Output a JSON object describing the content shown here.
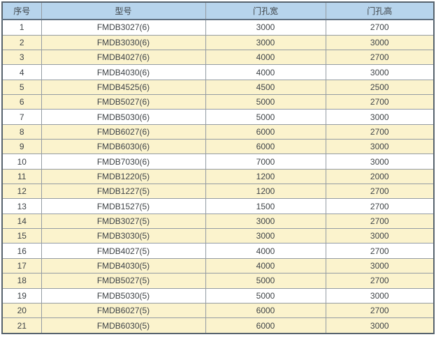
{
  "colors": {
    "header_bg": "#b7d4ec",
    "row_cream_bg": "#fbf3cd",
    "row_white_bg": "#ffffff",
    "border_outer": "#57636d",
    "border_inner": "#949ca3",
    "header_border_bottom": "#5f7081",
    "text": "#3e4347"
  },
  "table": {
    "columns": [
      {
        "key": "index",
        "label": "序号"
      },
      {
        "key": "model",
        "label": "型号"
      },
      {
        "key": "width",
        "label": "门孔宽"
      },
      {
        "key": "height",
        "label": "门孔高"
      }
    ],
    "rows": [
      {
        "no": "1",
        "model": "FMDB3027(6)",
        "width": "3000",
        "height": "2700",
        "shade": "white"
      },
      {
        "no": "2",
        "model": "FMDB3030(6)",
        "width": "3000",
        "height": "3000",
        "shade": "cream"
      },
      {
        "no": "3",
        "model": "FMDB4027(6)",
        "width": "4000",
        "height": "2700",
        "shade": "cream"
      },
      {
        "no": "4",
        "model": "FMDB4030(6)",
        "width": "4000",
        "height": "3000",
        "shade": "white"
      },
      {
        "no": "5",
        "model": "FMDB4525(6)",
        "width": "4500",
        "height": "2500",
        "shade": "cream"
      },
      {
        "no": "6",
        "model": "FMDB5027(6)",
        "width": "5000",
        "height": "2700",
        "shade": "cream"
      },
      {
        "no": "7",
        "model": "FMDB5030(6)",
        "width": "5000",
        "height": "3000",
        "shade": "white"
      },
      {
        "no": "8",
        "model": "FMDB6027(6)",
        "width": "6000",
        "height": "2700",
        "shade": "cream"
      },
      {
        "no": "9",
        "model": "FMDB6030(6)",
        "width": "6000",
        "height": "3000",
        "shade": "cream"
      },
      {
        "no": "10",
        "model": "FMDB7030(6)",
        "width": "7000",
        "height": "3000",
        "shade": "white"
      },
      {
        "no": "11",
        "model": "FMDB1220(5)",
        "width": "1200",
        "height": "2000",
        "shade": "cream"
      },
      {
        "no": "12",
        "model": "FMDB1227(5)",
        "width": "1200",
        "height": "2700",
        "shade": "cream"
      },
      {
        "no": "13",
        "model": "FMDB1527(5)",
        "width": "1500",
        "height": "2700",
        "shade": "white"
      },
      {
        "no": "14",
        "model": "FMDB3027(5)",
        "width": "3000",
        "height": "2700",
        "shade": "cream"
      },
      {
        "no": "15",
        "model": "FMDB3030(5)",
        "width": "3000",
        "height": "3000",
        "shade": "cream"
      },
      {
        "no": "16",
        "model": "FMDB4027(5)",
        "width": "4000",
        "height": "2700",
        "shade": "white"
      },
      {
        "no": "17",
        "model": "FMDB4030(5)",
        "width": "4000",
        "height": "3000",
        "shade": "cream"
      },
      {
        "no": "18",
        "model": "FMDB5027(5)",
        "width": "5000",
        "height": "2700",
        "shade": "cream"
      },
      {
        "no": "19",
        "model": "FMDB5030(5)",
        "width": "5000",
        "height": "3000",
        "shade": "white"
      },
      {
        "no": "20",
        "model": "FMDB6027(5)",
        "width": "6000",
        "height": "2700",
        "shade": "cream"
      },
      {
        "no": "21",
        "model": "FMDB6030(5)",
        "width": "6000",
        "height": "3000",
        "shade": "cream"
      }
    ]
  }
}
